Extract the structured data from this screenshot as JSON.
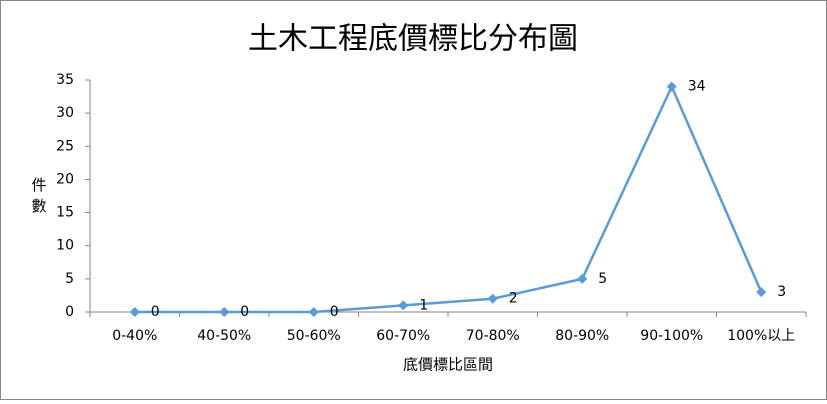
{
  "chart_data": {
    "type": "line",
    "title": "土木工程底價標比分布圖",
    "x_label": "底價標比區間",
    "y_label": "件數",
    "categories": [
      "0-40%",
      "40-50%",
      "50-60%",
      "60-70%",
      "70-80%",
      "80-90%",
      "90-100%",
      "100%以上"
    ],
    "series": [
      {
        "name": "件數",
        "color": "#5b9bd5",
        "values": [
          0,
          0,
          0,
          1,
          2,
          5,
          34,
          3
        ]
      }
    ],
    "ylim": [
      0,
      35
    ],
    "yticks": [
      0,
      5,
      10,
      15,
      20,
      25,
      30,
      35
    ],
    "grid": false,
    "data_labels": true,
    "legend": false
  }
}
